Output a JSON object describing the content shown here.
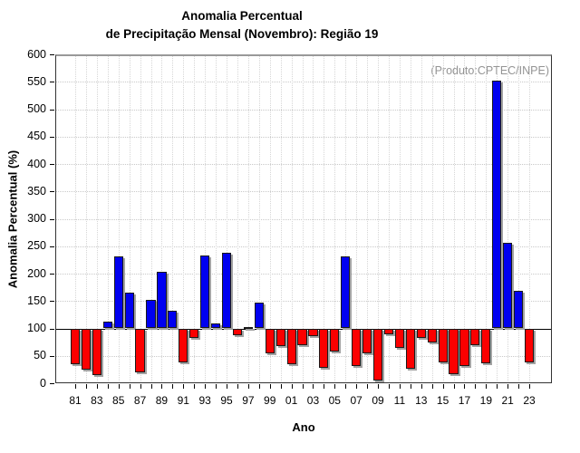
{
  "chart_data": {
    "type": "bar",
    "title_line1": "Anomalia Percentual",
    "title_line2": "de Precipitação Mensal (Novembro): Região 19",
    "annotation": "(Produto:CPTEC/INPE)",
    "xlabel": "Ano",
    "ylabel": "Anomalia Percentual (%)",
    "baseline": 100,
    "ylim": [
      0,
      600
    ],
    "ytick_step": 50,
    "ytick_labels": [
      "0",
      "50",
      "100",
      "150",
      "200",
      "250",
      "300",
      "350",
      "400",
      "450",
      "500",
      "550",
      "600"
    ],
    "categories": [
      "81",
      "82",
      "83",
      "84",
      "85",
      "86",
      "87",
      "88",
      "89",
      "90",
      "91",
      "92",
      "93",
      "94",
      "95",
      "96",
      "97",
      "98",
      "99",
      "00",
      "01",
      "02",
      "03",
      "04",
      "05",
      "06",
      "07",
      "08",
      "09",
      "10",
      "11",
      "12",
      "13",
      "14",
      "15",
      "16",
      "17",
      "18",
      "19",
      "20",
      "21",
      "22",
      "23"
    ],
    "xtick_label_every": 2,
    "values": [
      34,
      24,
      15,
      112,
      232,
      165,
      20,
      152,
      203,
      132,
      38,
      82,
      233,
      109,
      238,
      87,
      103,
      147,
      55,
      67,
      34,
      69,
      86,
      28,
      58,
      231,
      31,
      55,
      5,
      89,
      64,
      26,
      82,
      74,
      38,
      17,
      32,
      70,
      37,
      552,
      257,
      168,
      38
    ],
    "colors": {
      "above_baseline": "#0000f0",
      "below_baseline": "#fb0000"
    },
    "grid": "dotted",
    "legend": "none"
  }
}
